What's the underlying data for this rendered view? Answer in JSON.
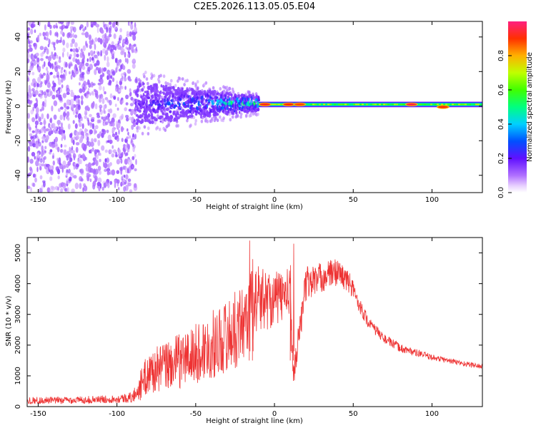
{
  "title": "C2E5.2026.113.05.05.E04",
  "chart_data": [
    {
      "type": "heatmap",
      "xlabel": "Height of straight line (km)",
      "ylabel": "Frequency (Hz)",
      "xlim": [
        -157,
        132
      ],
      "ylim": [
        -50,
        49
      ],
      "xticks": [
        -150,
        -100,
        -50,
        0,
        50,
        100
      ],
      "yticks": [
        -40,
        -20,
        0,
        20,
        40
      ],
      "colorbar": {
        "label": "Normalized spectral amplitude",
        "range": [
          0,
          1
        ],
        "ticks": [
          "0.0",
          "0.2",
          "0.4",
          "0.6",
          "0.8"
        ],
        "tick_values": [
          0,
          0.2,
          0.4,
          0.6,
          0.8
        ]
      },
      "regions": [
        {
          "name": "noise",
          "x_range": [
            -157,
            -88
          ],
          "freq_spread_hz": 49,
          "amplitude": 0.1
        },
        {
          "name": "transition",
          "x_range": [
            -88,
            -10
          ],
          "freq_spread_hz": [
            12,
            4
          ],
          "amplitude": [
            0.15,
            0.45
          ]
        },
        {
          "name": "signal",
          "x_range": [
            -10,
            132
          ],
          "center_freq_hz": 1,
          "amplitude": [
            0.5,
            0.95
          ]
        }
      ],
      "peaks": [
        {
          "x": -6,
          "freq": 1,
          "amplitude": 0.92
        },
        {
          "x": 9,
          "freq": 1,
          "amplitude": 0.9
        },
        {
          "x": 16,
          "freq": 1,
          "amplitude": 0.88
        },
        {
          "x": 87,
          "freq": 1,
          "amplitude": 0.95
        },
        {
          "x": 107,
          "freq": -0.5,
          "amplitude": 0.9
        }
      ]
    },
    {
      "type": "line",
      "xlabel": "Height of straight line (km)",
      "ylabel": "SNR (10 * v/v)",
      "xlim": [
        -157,
        132
      ],
      "ylim": [
        0,
        5500
      ],
      "xticks": [
        -150,
        -100,
        -50,
        0,
        50,
        100
      ],
      "yticks": [
        0,
        1000,
        2000,
        3000,
        4000,
        5000
      ],
      "series": [
        {
          "name": "SNR",
          "color": "#ee3333",
          "x": [
            -157,
            -140,
            -120,
            -100,
            -90,
            -85,
            -80,
            -70,
            -60,
            -50,
            -40,
            -30,
            -20,
            -16,
            -10,
            0,
            10,
            12,
            20,
            30,
            40,
            48,
            55,
            60,
            70,
            80,
            90,
            100,
            110,
            120,
            132
          ],
          "y": [
            200,
            200,
            220,
            250,
            300,
            700,
            1100,
            1300,
            1500,
            1700,
            2000,
            2300,
            2700,
            3200,
            3500,
            3500,
            3700,
            1000,
            4000,
            4200,
            4400,
            4000,
            3200,
            2700,
            2200,
            1900,
            1750,
            1600,
            1500,
            1400,
            1300
          ],
          "spread": [
            120,
            120,
            120,
            130,
            180,
            500,
            700,
            800,
            900,
            1000,
            1100,
            1200,
            1300,
            1300,
            1100,
            900,
            800,
            400,
            600,
            500,
            450,
            350,
            250,
            200,
            150,
            140,
            120,
            100,
            90,
            90,
            90
          ]
        }
      ]
    }
  ]
}
